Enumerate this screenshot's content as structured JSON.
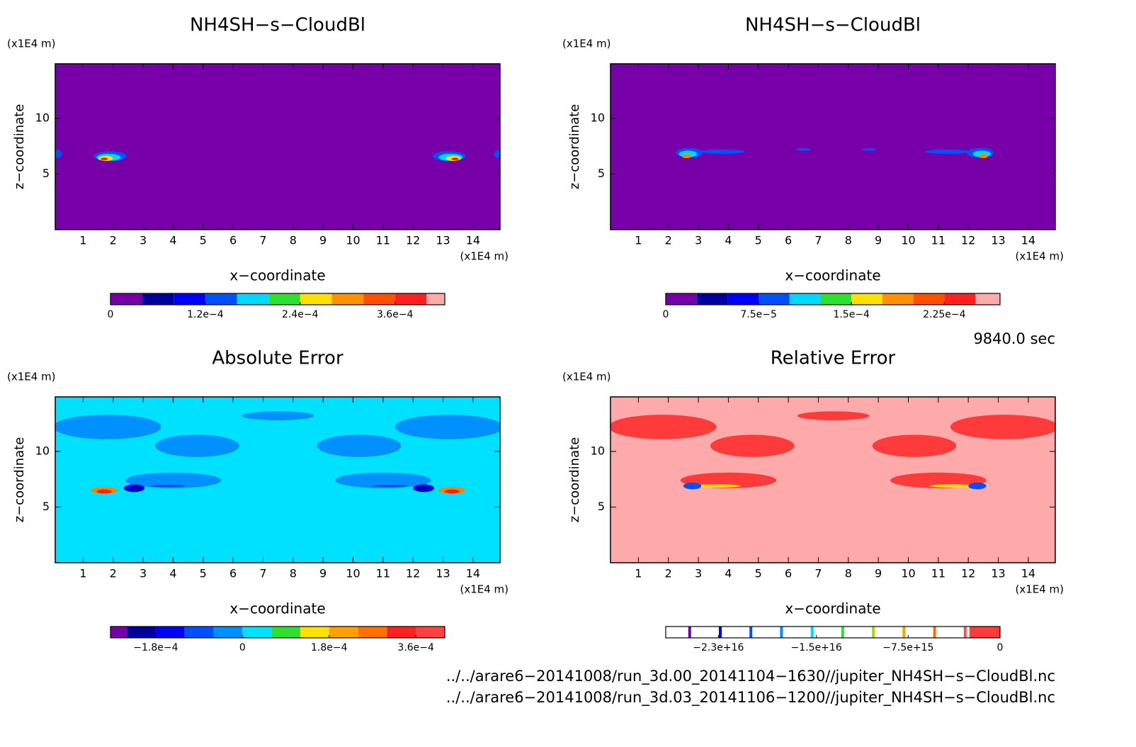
{
  "chart_data": [
    {
      "type": "contour",
      "title": "NH4SH−s−CloudBl",
      "x_label": "x−coordinate",
      "y_label": "z−coordinate",
      "x_unit": "(x1E4 m)",
      "y_unit": "(x1E4 m)",
      "xlim": [
        0.07,
        14.9
      ],
      "xticks": [
        1,
        2,
        3,
        4,
        5,
        6,
        7,
        8,
        9,
        10,
        11,
        12,
        13,
        14
      ],
      "ylim": [
        0,
        14.9
      ],
      "yticks": [
        5,
        10
      ],
      "background": "#7800a8",
      "features": [
        {
          "x": 1.9,
          "z": 6.6,
          "rx": 0.55,
          "rz": 0.45,
          "color": "#0050ff"
        },
        {
          "x": 1.85,
          "z": 6.5,
          "rx": 0.4,
          "rz": 0.32,
          "color": "#00d8ff"
        },
        {
          "x": 1.75,
          "z": 6.4,
          "rx": 0.25,
          "rz": 0.22,
          "color": "#ffe000"
        },
        {
          "x": 1.7,
          "z": 6.35,
          "rx": 0.12,
          "rz": 0.12,
          "color": "#ff2000"
        },
        {
          "x": 13.2,
          "z": 6.6,
          "rx": 0.55,
          "rz": 0.45,
          "color": "#0050ff"
        },
        {
          "x": 13.25,
          "z": 6.5,
          "rx": 0.4,
          "rz": 0.32,
          "color": "#00d8ff"
        },
        {
          "x": 13.35,
          "z": 6.4,
          "rx": 0.25,
          "rz": 0.22,
          "color": "#ffe000"
        },
        {
          "x": 13.4,
          "z": 6.35,
          "rx": 0.12,
          "rz": 0.12,
          "color": "#ff2000"
        },
        {
          "x": 0.15,
          "z": 6.8,
          "rx": 0.15,
          "rz": 0.35,
          "color": "#0050ff"
        },
        {
          "x": 14.85,
          "z": 6.8,
          "rx": 0.15,
          "rz": 0.35,
          "color": "#0050ff"
        }
      ],
      "colorbar": {
        "clim": [
          0,
          0.000423
        ],
        "step": 4e-05,
        "colors": [
          "#7800a8",
          "#00009c",
          "#0000ff",
          "#0050ff",
          "#00d8ff",
          "#30e030",
          "#ffe000",
          "#ff9000",
          "#ff5000",
          "#ff2020",
          "#ffaaaa"
        ],
        "ticks": [
          0,
          {
            "value": 0.00012,
            "label": "1.2e−4"
          },
          {
            "value": 0.00024,
            "label": "2.4e−4"
          },
          {
            "value": 0.00036,
            "label": "3.6e−4"
          }
        ]
      }
    },
    {
      "type": "contour",
      "title": "NH4SH−s−CloudBl",
      "x_label": "x−coordinate",
      "y_label": "z−coordinate",
      "x_unit": "(x1E4 m)",
      "y_unit": "(x1E4 m)",
      "xlim": [
        0.07,
        14.9
      ],
      "xticks": [
        1,
        2,
        3,
        4,
        5,
        6,
        7,
        8,
        9,
        10,
        11,
        12,
        13,
        14
      ],
      "ylim": [
        0,
        14.9
      ],
      "yticks": [
        5,
        10
      ],
      "background": "#7800a8",
      "features": [
        {
          "x": 3.8,
          "z": 7.0,
          "rx": 0.75,
          "rz": 0.2,
          "color": "#0050ff"
        },
        {
          "x": 2.7,
          "z": 6.9,
          "rx": 0.45,
          "rz": 0.45,
          "color": "#0050ff"
        },
        {
          "x": 2.65,
          "z": 6.8,
          "rx": 0.3,
          "rz": 0.3,
          "color": "#00d8ff"
        },
        {
          "x": 2.6,
          "z": 6.6,
          "rx": 0.15,
          "rz": 0.18,
          "color": "#ff8000"
        },
        {
          "x": 11.3,
          "z": 7.0,
          "rx": 0.75,
          "rz": 0.2,
          "color": "#0050ff"
        },
        {
          "x": 12.4,
          "z": 6.9,
          "rx": 0.45,
          "rz": 0.45,
          "color": "#0050ff"
        },
        {
          "x": 12.45,
          "z": 6.8,
          "rx": 0.3,
          "rz": 0.3,
          "color": "#00d8ff"
        },
        {
          "x": 12.5,
          "z": 6.6,
          "rx": 0.15,
          "rz": 0.18,
          "color": "#ff8000"
        },
        {
          "x": 6.5,
          "z": 7.2,
          "rx": 0.25,
          "rz": 0.12,
          "color": "#0050ff"
        },
        {
          "x": 8.7,
          "z": 7.2,
          "rx": 0.25,
          "rz": 0.12,
          "color": "#0050ff"
        }
      ],
      "colorbar": {
        "clim": [
          0,
          0.00027
        ],
        "step": 2.5e-05,
        "colors": [
          "#7800a8",
          "#00009c",
          "#0000ff",
          "#0050ff",
          "#00d8ff",
          "#30e030",
          "#ffe000",
          "#ff9000",
          "#ff5000",
          "#ff2020",
          "#ffaaaa"
        ],
        "ticks": [
          0,
          {
            "value": 7.5e-05,
            "label": "7.5e−5"
          },
          {
            "value": 0.00015,
            "label": "1.5e−4"
          },
          {
            "value": 0.000225,
            "label": "2.25e−4"
          }
        ]
      }
    },
    {
      "type": "contour",
      "title": "Absolute Error",
      "x_label": "x−coordinate",
      "y_label": "z−coordinate",
      "x_unit": "(x1E4 m)",
      "y_unit": "(x1E4 m)",
      "xlim": [
        0.07,
        14.9
      ],
      "xticks": [
        1,
        2,
        3,
        4,
        5,
        6,
        7,
        8,
        9,
        10,
        11,
        12,
        13,
        14
      ],
      "ylim": [
        0,
        14.9
      ],
      "yticks": [
        5,
        10
      ],
      "background": "#00e0ff",
      "features": [
        {
          "x": 1.8,
          "z": 12.2,
          "rx": 1.8,
          "rz": 1.1,
          "color": "#0090ff"
        },
        {
          "x": 13.2,
          "z": 12.2,
          "rx": 1.8,
          "rz": 1.1,
          "color": "#0090ff"
        },
        {
          "x": 4.8,
          "z": 10.5,
          "rx": 1.4,
          "rz": 1.0,
          "color": "#0090ff"
        },
        {
          "x": 10.2,
          "z": 10.5,
          "rx": 1.4,
          "rz": 1.0,
          "color": "#0090ff"
        },
        {
          "x": 7.5,
          "z": 13.2,
          "rx": 1.2,
          "rz": 0.4,
          "color": "#0090ff"
        },
        {
          "x": 4.0,
          "z": 7.4,
          "rx": 1.6,
          "rz": 0.7,
          "color": "#0090ff"
        },
        {
          "x": 11.0,
          "z": 7.4,
          "rx": 1.6,
          "rz": 0.7,
          "color": "#0090ff"
        },
        {
          "x": 3.8,
          "z": 6.9,
          "rx": 0.6,
          "rz": 0.1,
          "color": "#0050ff"
        },
        {
          "x": 11.2,
          "z": 6.9,
          "rx": 0.6,
          "rz": 0.1,
          "color": "#0050ff"
        },
        {
          "x": 1.7,
          "z": 6.5,
          "rx": 0.45,
          "rz": 0.3,
          "color": "#ff8000"
        },
        {
          "x": 1.7,
          "z": 6.4,
          "rx": 0.25,
          "rz": 0.18,
          "color": "#ff2000"
        },
        {
          "x": 13.3,
          "z": 6.5,
          "rx": 0.45,
          "rz": 0.3,
          "color": "#ff8000"
        },
        {
          "x": 13.3,
          "z": 6.4,
          "rx": 0.25,
          "rz": 0.18,
          "color": "#ff2000"
        },
        {
          "x": 2.7,
          "z": 6.7,
          "rx": 0.35,
          "rz": 0.35,
          "color": "#0000ff"
        },
        {
          "x": 2.75,
          "z": 6.7,
          "rx": 0.2,
          "rz": 0.2,
          "color": "#00009c"
        },
        {
          "x": 12.35,
          "z": 6.7,
          "rx": 0.35,
          "rz": 0.35,
          "color": "#0000ff"
        },
        {
          "x": 12.3,
          "z": 6.7,
          "rx": 0.2,
          "rz": 0.2,
          "color": "#00009c"
        }
      ],
      "colorbar": {
        "clim": [
          -0.000274,
          0.00042
        ],
        "step": 6e-05,
        "colors": [
          "#7800a8",
          "#00009c",
          "#0000ff",
          "#0050ff",
          "#0090ff",
          "#00e0ff",
          "#30e030",
          "#ffe000",
          "#ffa000",
          "#ff7000",
          "#ff2020",
          "#ff4040"
        ],
        "ticks": [
          {
            "value": -0.00018,
            "label": "−1.8e−4"
          },
          0,
          {
            "value": 0.00018,
            "label": "1.8e−4"
          },
          {
            "value": 0.00036,
            "label": "3.6e−4"
          }
        ]
      }
    },
    {
      "type": "contour",
      "title": "Relative Error",
      "x_label": "x−coordinate",
      "y_label": "z−coordinate",
      "x_unit": "(x1E4 m)",
      "y_unit": "(x1E4 m)",
      "xlim": [
        0.07,
        14.9
      ],
      "xticks": [
        1,
        2,
        3,
        4,
        5,
        6,
        7,
        8,
        9,
        10,
        11,
        12,
        13,
        14
      ],
      "ylim": [
        0,
        14.9
      ],
      "yticks": [
        5,
        10
      ],
      "background": "#ffaaaa",
      "features": [
        {
          "x": 1.8,
          "z": 12.2,
          "rx": 1.8,
          "rz": 1.1,
          "color": "#ff3a3a"
        },
        {
          "x": 13.2,
          "z": 12.2,
          "rx": 1.8,
          "rz": 1.1,
          "color": "#ff3a3a"
        },
        {
          "x": 4.8,
          "z": 10.5,
          "rx": 1.4,
          "rz": 1.0,
          "color": "#ff3a3a"
        },
        {
          "x": 10.2,
          "z": 10.5,
          "rx": 1.4,
          "rz": 1.0,
          "color": "#ff3a3a"
        },
        {
          "x": 7.5,
          "z": 13.2,
          "rx": 1.2,
          "rz": 0.4,
          "color": "#ff3a3a"
        },
        {
          "x": 4.0,
          "z": 7.4,
          "rx": 1.6,
          "rz": 0.7,
          "color": "#ff3a3a"
        },
        {
          "x": 11.0,
          "z": 7.4,
          "rx": 1.6,
          "rz": 0.7,
          "color": "#ff3a3a"
        },
        {
          "x": 3.6,
          "z": 6.9,
          "rx": 0.8,
          "rz": 0.15,
          "color": "#ffe000"
        },
        {
          "x": 11.5,
          "z": 6.9,
          "rx": 0.8,
          "rz": 0.15,
          "color": "#ffe000"
        },
        {
          "x": 2.8,
          "z": 6.9,
          "rx": 0.3,
          "rz": 0.3,
          "color": "#0050ff"
        },
        {
          "x": 12.3,
          "z": 6.9,
          "rx": 0.3,
          "rz": 0.3,
          "color": "#0050ff"
        }
      ],
      "colorbar": {
        "clim": [
          -2.73e+16,
          0
        ],
        "step": 2500000000000000.0,
        "style": "lines",
        "colors": [
          "#7800a8",
          "#0000ff",
          "#0050ff",
          "#0090ff",
          "#00d8ff",
          "#30e030",
          "#a0e000",
          "#ffa000",
          "#ff7000",
          "#ff5050",
          "#ff3a3a"
        ],
        "ticks": [
          {
            "value": -2.3e+16,
            "label": "−2.3e+16"
          },
          {
            "value": -1.5e+16,
            "label": "−1.5e+16"
          },
          {
            "value": -7500000000000000.0,
            "label": "−7.5e+15"
          },
          0
        ]
      }
    }
  ],
  "time_label": "9840.0 sec",
  "files": [
    "../../arare6−20141008/run_3d.00_20141104−1630//jupiter_NH4SH−s−CloudBl.nc",
    "../../arare6−20141008/run_3d.03_20141106−1200//jupiter_NH4SH−s−CloudBl.nc"
  ]
}
